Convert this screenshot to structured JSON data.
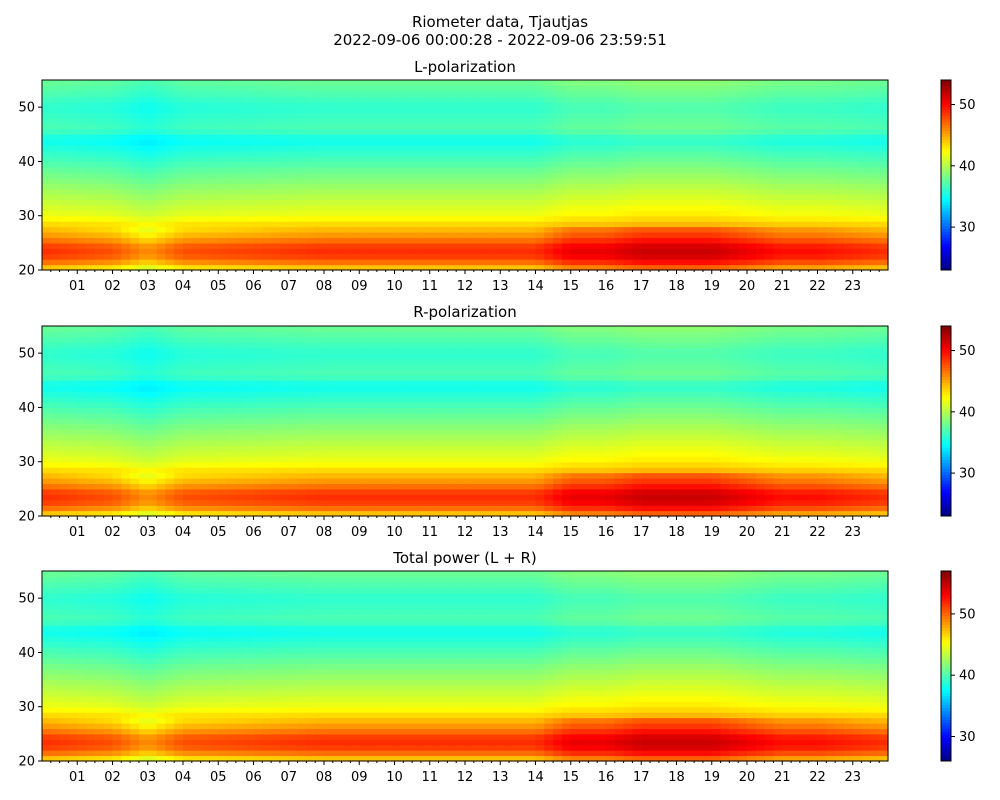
{
  "figure": {
    "title_line1": "Riometer data, Tjautjas",
    "title_line2": "2022-09-06 00:00:28 - 2022-09-06 23:59:51"
  },
  "chart_data": [
    {
      "type": "heatmap",
      "title": "L-polarization",
      "xlabel": "",
      "ylabel": "",
      "x_ticks": [
        "01",
        "02",
        "03",
        "04",
        "05",
        "06",
        "07",
        "08",
        "09",
        "10",
        "11",
        "12",
        "13",
        "14",
        "15",
        "16",
        "17",
        "18",
        "19",
        "20",
        "21",
        "22",
        "23"
      ],
      "x_range_hours": [
        0,
        24
      ],
      "ylim": [
        20,
        55
      ],
      "y_ticks": [
        20,
        30,
        40,
        50
      ],
      "colorbar": {
        "cmap": "jet",
        "range": [
          23,
          54
        ],
        "ticks": [
          30,
          40,
          50
        ]
      },
      "profile": {
        "y": [
          20,
          22,
          24,
          26,
          28,
          30,
          34,
          38,
          42,
          44,
          46,
          50,
          55
        ],
        "values": [
          43,
          48,
          49,
          46,
          44,
          42,
          40,
          38,
          36,
          35,
          37,
          36,
          38
        ]
      },
      "time_variation": {
        "hours": [
          0,
          2,
          3,
          4,
          8,
          12,
          14,
          15,
          16,
          17,
          18,
          19,
          20,
          21,
          22,
          24
        ],
        "delta": [
          0,
          -1,
          -3,
          -1,
          0,
          0,
          0,
          2,
          2,
          3,
          3,
          3,
          2,
          1,
          1,
          0
        ]
      }
    },
    {
      "type": "heatmap",
      "title": "R-polarization",
      "xlabel": "",
      "ylabel": "",
      "x_ticks": [
        "01",
        "02",
        "03",
        "04",
        "05",
        "06",
        "07",
        "08",
        "09",
        "10",
        "11",
        "12",
        "13",
        "14",
        "15",
        "16",
        "17",
        "18",
        "19",
        "20",
        "21",
        "22",
        "23"
      ],
      "x_range_hours": [
        0,
        24
      ],
      "ylim": [
        20,
        55
      ],
      "y_ticks": [
        20,
        30,
        40,
        50
      ],
      "colorbar": {
        "cmap": "jet",
        "range": [
          23,
          54
        ],
        "ticks": [
          30,
          40,
          50
        ]
      },
      "profile": {
        "y": [
          20,
          22,
          24,
          26,
          28,
          30,
          34,
          38,
          42,
          44,
          46,
          50,
          55
        ],
        "values": [
          43,
          48,
          49,
          46,
          44,
          42,
          40,
          38,
          36,
          35,
          37,
          36,
          38
        ]
      },
      "time_variation": {
        "hours": [
          0,
          2,
          3,
          4,
          8,
          12,
          14,
          15,
          16,
          17,
          18,
          19,
          20,
          21,
          22,
          24
        ],
        "delta": [
          0,
          -1,
          -3,
          -1,
          0,
          0,
          0,
          2,
          2,
          3,
          3,
          3,
          2,
          1,
          1,
          0
        ]
      }
    },
    {
      "type": "heatmap",
      "title": "Total power (L + R)",
      "xlabel": "",
      "ylabel": "",
      "x_ticks": [
        "01",
        "02",
        "03",
        "04",
        "05",
        "06",
        "07",
        "08",
        "09",
        "10",
        "11",
        "12",
        "13",
        "14",
        "15",
        "16",
        "17",
        "18",
        "19",
        "20",
        "21",
        "22",
        "23"
      ],
      "x_range_hours": [
        0,
        24
      ],
      "ylim": [
        20,
        55
      ],
      "y_ticks": [
        20,
        30,
        40,
        50
      ],
      "colorbar": {
        "cmap": "jet",
        "range": [
          26,
          57
        ],
        "ticks": [
          30,
          40,
          50
        ]
      },
      "profile": {
        "y": [
          20,
          22,
          24,
          26,
          28,
          30,
          34,
          38,
          42,
          44,
          46,
          50,
          55
        ],
        "values": [
          46,
          51,
          52,
          49,
          47,
          45,
          43,
          41,
          39,
          38,
          40,
          39,
          41
        ]
      },
      "time_variation": {
        "hours": [
          0,
          2,
          3,
          4,
          8,
          12,
          14,
          15,
          16,
          17,
          18,
          19,
          20,
          21,
          22,
          24
        ],
        "delta": [
          0,
          -1,
          -3,
          -1,
          0,
          0,
          0,
          2,
          2,
          3,
          3,
          3,
          2,
          1,
          1,
          0
        ]
      }
    }
  ]
}
